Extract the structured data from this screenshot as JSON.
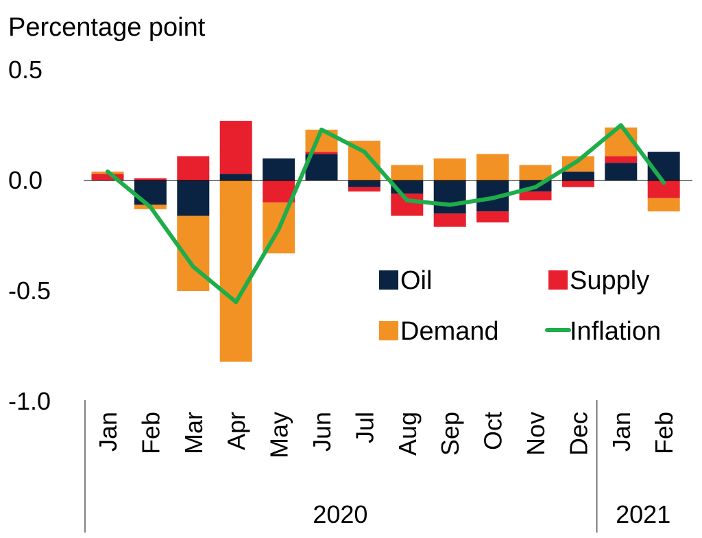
{
  "chart_data": {
    "type": "bar",
    "stacked": true,
    "ylabel": "Percentage point",
    "ylim": [
      -1.0,
      0.5
    ],
    "yticks": [
      0.5,
      0.0,
      -0.5,
      -1.0
    ],
    "ytick_labels": [
      "0.5",
      "0.0",
      "-0.5",
      "-1.0"
    ],
    "categories": [
      "Jan",
      "Feb",
      "Mar",
      "Apr",
      "May",
      "Jun",
      "Jul",
      "Aug",
      "Sep",
      "Oct",
      "Nov",
      "Dec",
      "Jan",
      "Feb"
    ],
    "groups": [
      {
        "label": "2020",
        "start": 0,
        "count": 12
      },
      {
        "label": "2021",
        "start": 12,
        "count": 2
      }
    ],
    "series": [
      {
        "name": "Oil",
        "kind": "bar",
        "color": "#0a2342",
        "values": [
          0.0,
          -0.11,
          -0.16,
          0.03,
          0.1,
          0.12,
          -0.03,
          -0.06,
          -0.15,
          -0.14,
          -0.05,
          0.04,
          0.08,
          0.13
        ]
      },
      {
        "name": "Supply",
        "kind": "bar",
        "color": "#e8202e",
        "values": [
          0.03,
          0.01,
          0.11,
          0.24,
          -0.1,
          0.01,
          -0.02,
          -0.1,
          -0.06,
          -0.05,
          -0.04,
          -0.03,
          0.03,
          -0.08
        ]
      },
      {
        "name": "Demand",
        "kind": "bar",
        "color": "#f39224",
        "values": [
          0.01,
          -0.02,
          -0.34,
          -0.82,
          -0.23,
          0.1,
          0.18,
          0.07,
          0.1,
          0.12,
          0.07,
          0.07,
          0.13,
          -0.06
        ]
      },
      {
        "name": "Inflation",
        "kind": "line",
        "color": "#1ead4b",
        "values": [
          0.04,
          -0.12,
          -0.39,
          -0.55,
          -0.22,
          0.23,
          0.13,
          -0.09,
          -0.11,
          -0.08,
          -0.03,
          0.09,
          0.25,
          -0.01
        ]
      }
    ],
    "legend": {
      "position": "lower-right",
      "order": [
        "Oil",
        "Supply",
        "Demand",
        "Inflation"
      ]
    },
    "grid": false
  }
}
